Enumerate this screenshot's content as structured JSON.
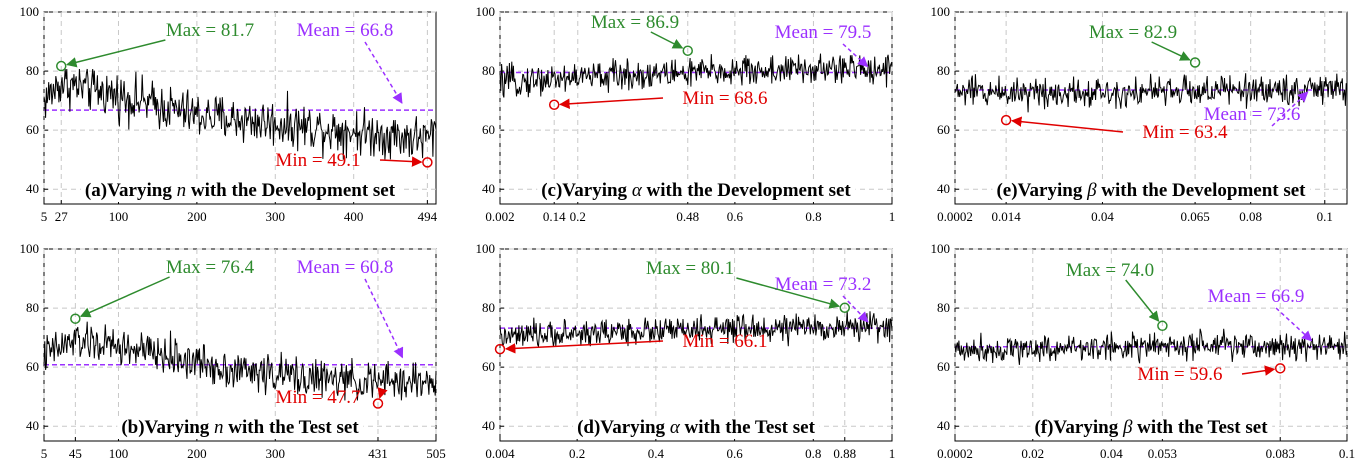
{
  "colors": {
    "series": "#000000",
    "max": "#2e8b2e",
    "min": "#e00000",
    "mean": "#9b30ff",
    "grid": "#c8c8c8"
  },
  "chart_data": [
    {
      "id": "a",
      "type": "line",
      "caption": "(a)Varying",
      "variable": "n",
      "caption_suffix": "with the Development set",
      "xlim": [
        5,
        505
      ],
      "ylim": [
        35,
        100
      ],
      "yticks": [
        "40",
        "60",
        "80",
        "100"
      ],
      "xticks": [
        {
          "v": 5,
          "label": "5"
        },
        {
          "v": 27,
          "label": "27",
          "color": "max"
        },
        {
          "v": 100,
          "label": "100"
        },
        {
          "v": 200,
          "label": "200"
        },
        {
          "v": 300,
          "label": "300"
        },
        {
          "v": 400,
          "label": "400"
        },
        {
          "v": 494,
          "label": "494",
          "color": "min"
        }
      ],
      "n_points": 500,
      "trend": [
        [
          5,
          70
        ],
        [
          27,
          76
        ],
        [
          80,
          73
        ],
        [
          200,
          65
        ],
        [
          350,
          61
        ],
        [
          494,
          57
        ],
        [
          505,
          60
        ]
      ],
      "noise": 6,
      "max": {
        "x": 27,
        "y": 81.7,
        "label": "Max = 81.7"
      },
      "min": {
        "x": 494,
        "y": 49.1,
        "label": "Min = 49.1"
      },
      "mean": {
        "y": 66.8,
        "label": "Mean = 66.8"
      }
    },
    {
      "id": "b",
      "type": "line",
      "caption": "(b)Varying",
      "variable": "n",
      "caption_suffix": "with the Test set",
      "xlim": [
        5,
        505
      ],
      "ylim": [
        35,
        100
      ],
      "yticks": [
        "40",
        "60",
        "80",
        "100"
      ],
      "xticks": [
        {
          "v": 5,
          "label": "5"
        },
        {
          "v": 45,
          "label": "45",
          "color": "max"
        },
        {
          "v": 100,
          "label": "100"
        },
        {
          "v": 200,
          "label": "200"
        },
        {
          "v": 300,
          "label": "300"
        },
        {
          "v": 431,
          "label": "431",
          "color": "min"
        },
        {
          "v": 505,
          "label": "505"
        }
      ],
      "n_points": 500,
      "trend": [
        [
          5,
          64
        ],
        [
          45,
          69
        ],
        [
          120,
          66
        ],
        [
          250,
          59
        ],
        [
          400,
          55
        ],
        [
          505,
          55
        ]
      ],
      "noise": 5,
      "max": {
        "x": 45,
        "y": 76.4,
        "label": "Max = 76.4"
      },
      "min": {
        "x": 431,
        "y": 47.7,
        "label": "Min = 47.7"
      },
      "mean": {
        "y": 60.8,
        "label": "Mean = 60.8"
      }
    },
    {
      "id": "c",
      "type": "line",
      "caption": "(c)Varying",
      "variable": "α",
      "caption_suffix": "with the Development set",
      "xlim": [
        0.002,
        1
      ],
      "ylim": [
        35,
        100
      ],
      "yticks": [
        "40",
        "60",
        "80",
        "100"
      ],
      "xticks": [
        {
          "v": 0.002,
          "label": "0.002"
        },
        {
          "v": 0.14,
          "label": "0.14",
          "color": "min"
        },
        {
          "v": 0.2,
          "label": "0.2"
        },
        {
          "v": 0.48,
          "label": "0.48",
          "color": "max"
        },
        {
          "v": 0.6,
          "label": "0.6"
        },
        {
          "v": 0.8,
          "label": "0.8"
        },
        {
          "v": 1,
          "label": "1"
        }
      ],
      "n_points": 500,
      "trend": [
        [
          0.002,
          76
        ],
        [
          0.2,
          78
        ],
        [
          0.6,
          80
        ],
        [
          1,
          81
        ]
      ],
      "noise": 4,
      "max": {
        "x": 0.48,
        "y": 86.9,
        "label": "Max = 86.9"
      },
      "min": {
        "x": 0.14,
        "y": 68.6,
        "label": "Min = 68.6"
      },
      "mean": {
        "y": 79.5,
        "label": "Mean = 79.5"
      }
    },
    {
      "id": "d",
      "type": "line",
      "caption": "(d)Varying",
      "variable": "α",
      "caption_suffix": "with the Test set",
      "xlim": [
        0.004,
        1
      ],
      "ylim": [
        35,
        100
      ],
      "yticks": [
        "40",
        "60",
        "80",
        "100"
      ],
      "xticks": [
        {
          "v": 0.004,
          "label": "0.004",
          "color": "min"
        },
        {
          "v": 0.2,
          "label": "0.2"
        },
        {
          "v": 0.4,
          "label": "0.4"
        },
        {
          "v": 0.6,
          "label": "0.6"
        },
        {
          "v": 0.8,
          "label": "0.8"
        },
        {
          "v": 0.88,
          "label": "0.88",
          "color": "max"
        },
        {
          "v": 1,
          "label": "1"
        }
      ],
      "n_points": 500,
      "trend": [
        [
          0.004,
          70
        ],
        [
          0.3,
          72
        ],
        [
          0.7,
          73
        ],
        [
          1,
          74
        ]
      ],
      "noise": 3.5,
      "max": {
        "x": 0.88,
        "y": 80.1,
        "label": "Max = 80.1"
      },
      "min": {
        "x": 0.004,
        "y": 66.1,
        "label": "Min = 66.1"
      },
      "mean": {
        "y": 73.2,
        "label": "Mean = 73.2"
      }
    },
    {
      "id": "e",
      "type": "line",
      "caption": "(e)Varying",
      "variable": "β",
      "caption_suffix": "with the Development set",
      "xlim": [
        0.0002,
        0.106
      ],
      "ylim": [
        35,
        100
      ],
      "yticks": [
        "40",
        "60",
        "80",
        "100"
      ],
      "xticks": [
        {
          "v": 0.0002,
          "label": "0.0002"
        },
        {
          "v": 0.014,
          "label": "0.014",
          "color": "min"
        },
        {
          "v": 0.04,
          "label": "0.04"
        },
        {
          "v": 0.065,
          "label": "0.065",
          "color": "max"
        },
        {
          "v": 0.08,
          "label": "0.08"
        },
        {
          "v": 0.1,
          "label": "0.1"
        }
      ],
      "n_points": 500,
      "trend": [
        [
          0.0002,
          73
        ],
        [
          0.05,
          73
        ],
        [
          0.106,
          74
        ]
      ],
      "noise": 4,
      "max": {
        "x": 0.065,
        "y": 82.9,
        "label": "Max = 82.9"
      },
      "min": {
        "x": 0.014,
        "y": 63.4,
        "label": "Min = 63.4"
      },
      "mean": {
        "y": 73.6,
        "label": "Mean = 73.6"
      }
    },
    {
      "id": "f",
      "type": "line",
      "caption": "(f)Varying",
      "variable": "β",
      "caption_suffix": "with the Test set",
      "xlim": [
        0.0002,
        0.1
      ],
      "ylim": [
        35,
        100
      ],
      "yticks": [
        "40",
        "60",
        "80",
        "100"
      ],
      "xticks": [
        {
          "v": 0.0002,
          "label": "0.0002"
        },
        {
          "v": 0.02,
          "label": "0.02"
        },
        {
          "v": 0.04,
          "label": "0.04"
        },
        {
          "v": 0.053,
          "label": "0.053",
          "color": "max"
        },
        {
          "v": 0.083,
          "label": "0.083",
          "color": "min"
        },
        {
          "v": 0.1,
          "label": "0.1"
        }
      ],
      "n_points": 500,
      "trend": [
        [
          0.0002,
          66
        ],
        [
          0.05,
          67
        ],
        [
          0.1,
          67
        ]
      ],
      "noise": 3.5,
      "max": {
        "x": 0.053,
        "y": 74.0,
        "label": "Max = 74.0"
      },
      "min": {
        "x": 0.083,
        "y": 59.6,
        "label": "Min = 59.6"
      },
      "mean": {
        "y": 66.9,
        "label": "Mean = 66.9"
      }
    }
  ]
}
